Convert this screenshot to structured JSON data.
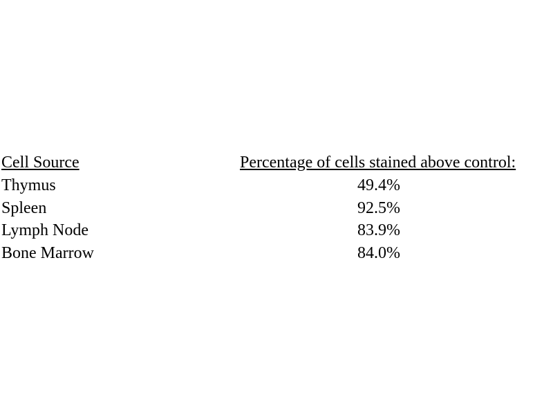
{
  "table": {
    "header": [
      "Cell Source",
      "Percentage of cells stained above control:"
    ],
    "rows": [
      [
        "Thymus",
        "49.4%"
      ],
      [
        "Spleen",
        "92.5%"
      ],
      [
        "Lymph Node",
        "83.9%"
      ],
      [
        "Bone Marrow",
        "84.0%"
      ]
    ]
  }
}
